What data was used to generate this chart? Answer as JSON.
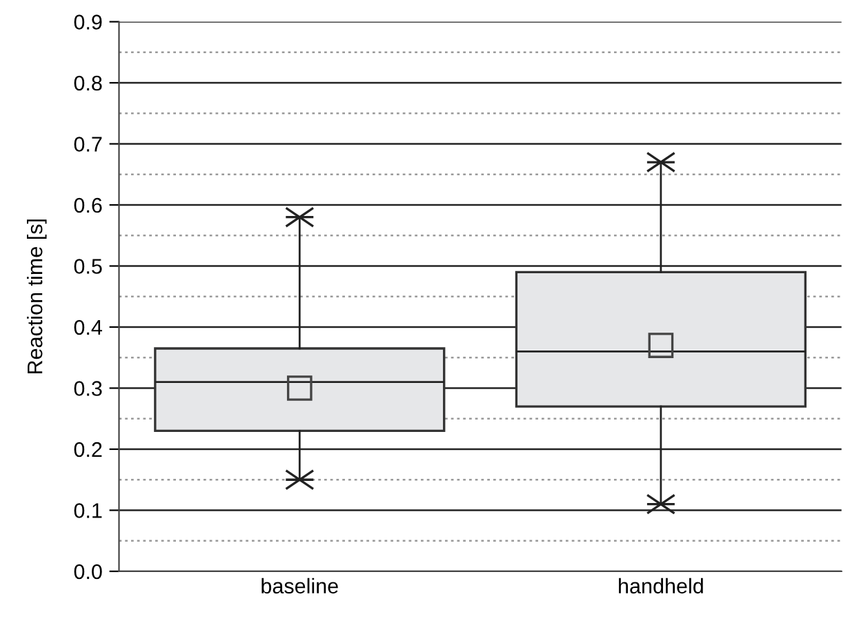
{
  "chart_data": {
    "type": "box",
    "ylabel": "Reaction time [s]",
    "categories": [
      "baseline",
      "handheld"
    ],
    "boxes": [
      {
        "low": 0.15,
        "q1": 0.23,
        "median": 0.31,
        "q3": 0.365,
        "high": 0.58,
        "mean": 0.3
      },
      {
        "low": 0.11,
        "q1": 0.27,
        "median": 0.36,
        "q3": 0.49,
        "high": 0.67,
        "mean": 0.37
      }
    ],
    "color": "#e6e7e9",
    "ylim": [
      0,
      0.9
    ],
    "yticks": [
      {
        "value": 0,
        "label": "0.0"
      },
      0.1,
      0.2,
      0.3,
      0.4,
      0.5,
      0.6,
      0.7,
      0.8,
      0.9
    ],
    "grid": "y",
    "marker": "square"
  }
}
